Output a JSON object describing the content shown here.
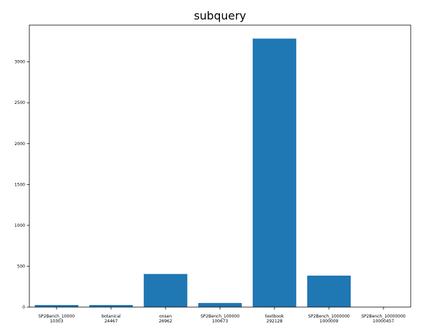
{
  "chart_data": {
    "type": "bar",
    "title": "subquery",
    "xlabel": "",
    "ylabel": "",
    "categories": [
      [
        "SP2Bench_10000",
        "10303"
      ],
      [
        "botanical",
        "24467"
      ],
      [
        "onsen",
        "26962"
      ],
      [
        "SP2Bench_100000",
        "100673"
      ],
      [
        "textbook",
        "292128"
      ],
      [
        "SP2Bench_1000000",
        "1000009"
      ],
      [
        "SP2Bench_10000000",
        "10000457"
      ]
    ],
    "values": [
      25,
      25,
      405,
      50,
      3285,
      385,
      0
    ],
    "ylim": [
      0,
      3450
    ],
    "yticks": [
      0,
      500,
      1000,
      1500,
      2000,
      2500,
      3000
    ],
    "bar_color": "#1f77b4",
    "grid": false
  }
}
